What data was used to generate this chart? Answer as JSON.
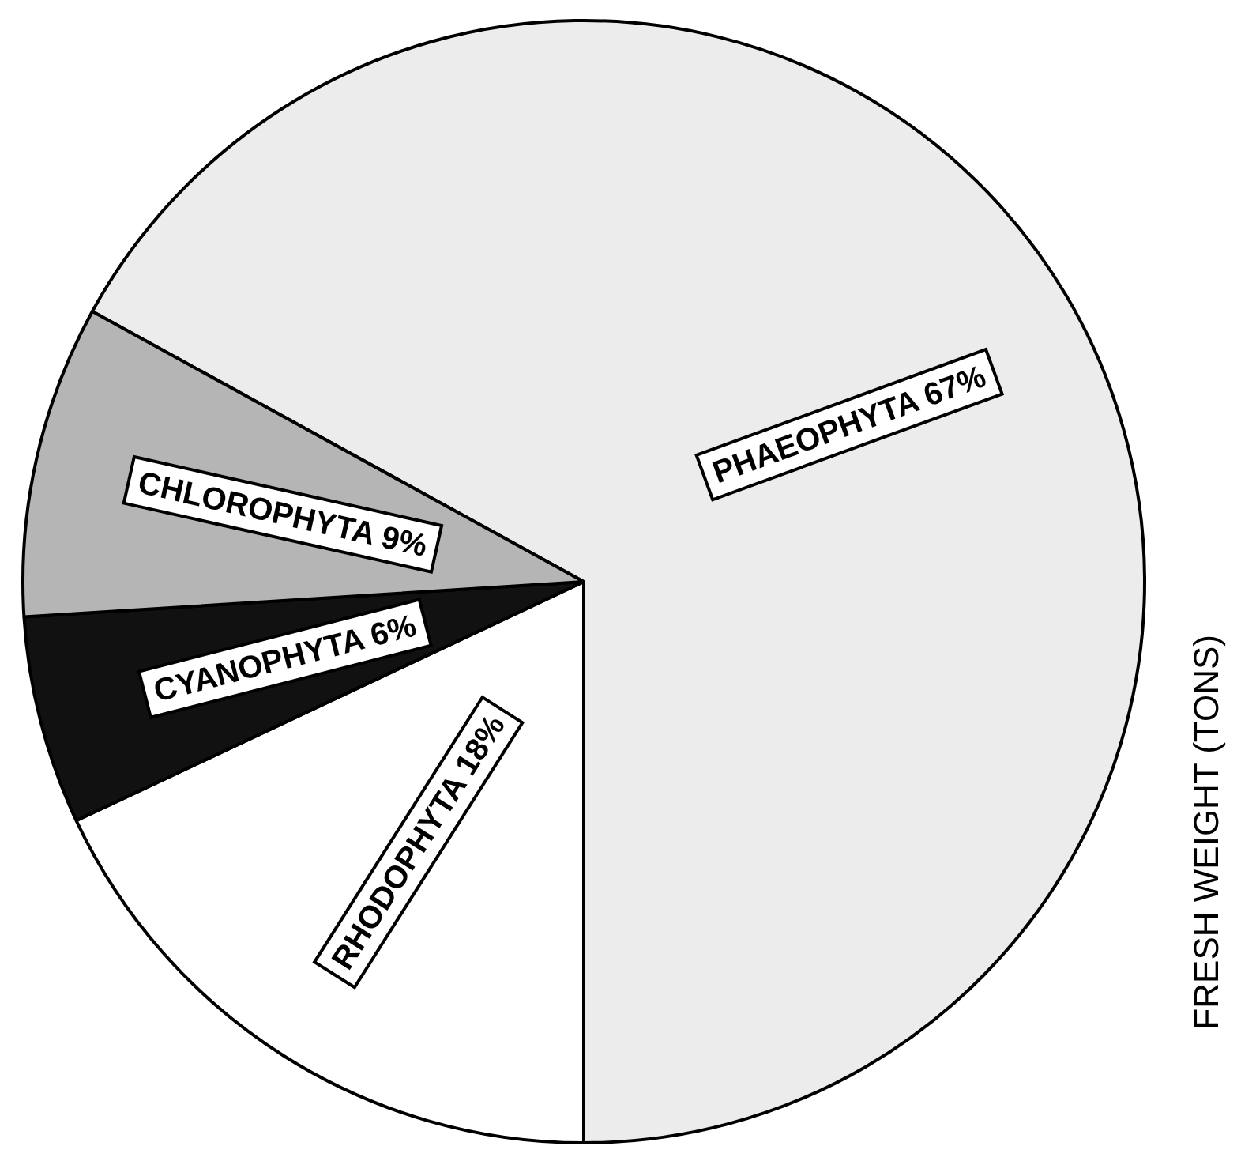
{
  "chart_data": {
    "type": "pie",
    "ylabel": "FRESH WEIGHT (TONS)",
    "categories": [
      "PHAEOPHYTA",
      "RHODOPHYTA",
      "CYANOPHYTA",
      "CHLOROPHYTA"
    ],
    "values": [
      67,
      18,
      6,
      9
    ],
    "value_labels": [
      "67%",
      "18%",
      "6%",
      "9%"
    ],
    "colors": [
      "#ececec",
      "#ffffff",
      "#111111",
      "#b5b5b5"
    ],
    "legend": false
  }
}
